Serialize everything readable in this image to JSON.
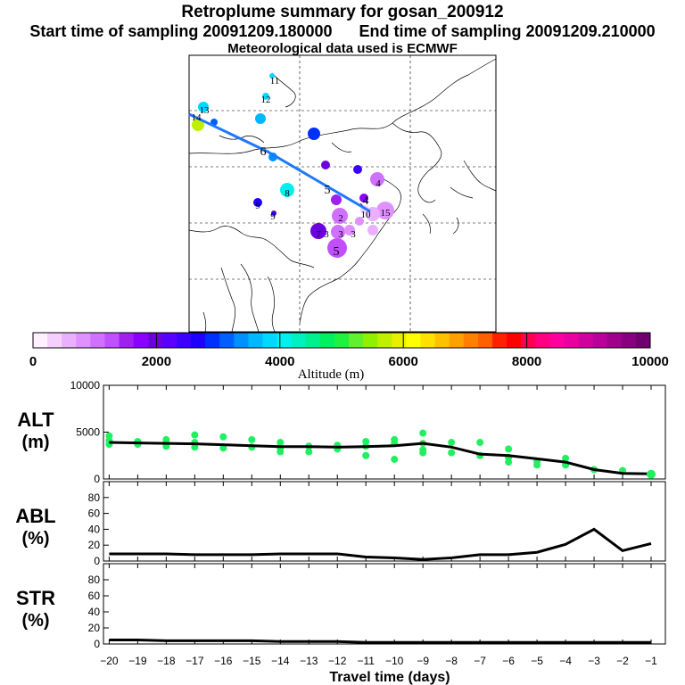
{
  "header": {
    "title": "Retroplume summary for gosan_200912",
    "start_label": "Start time of sampling 20091209.180000",
    "end_label": "End time of sampling 20091209.210000",
    "met_label": "Meteorological data used is ECMWF"
  },
  "chart_data": [
    {
      "type": "map",
      "title": "Retroplume trajectory map",
      "trajectory_day_labels": [
        "1",
        "2",
        "3",
        "4",
        "5",
        "6",
        "7",
        "8",
        "9",
        "10",
        "11",
        "12",
        "13",
        "14",
        "15"
      ],
      "cluster_labels": [
        "2",
        "3",
        "3",
        "3",
        "4",
        "4",
        "5",
        "5",
        "6",
        "7",
        "8",
        "9",
        "9",
        "10",
        "11",
        "12",
        "13",
        "14",
        "15"
      ],
      "colorbar": {
        "label": "Altitude (m)",
        "min": 0,
        "max": 10000,
        "ticks": [
          0,
          2000,
          4000,
          6000,
          8000,
          10000
        ],
        "colors": [
          "#fff0ff",
          "#f5d0ff",
          "#eab0ff",
          "#e090ff",
          "#d070ff",
          "#c050ff",
          "#a020f0",
          "#8c00ff",
          "#6e00e0",
          "#5a00ff",
          "#3c00ff",
          "#1e00ff",
          "#0030ff",
          "#0060ff",
          "#0090ff",
          "#00b8ff",
          "#00d8ff",
          "#00f0f0",
          "#00f0c0",
          "#00f090",
          "#00f060",
          "#20f040",
          "#60f030",
          "#90f000",
          "#c0f000",
          "#e8f000",
          "#ffff00",
          "#ffe000",
          "#ffc000",
          "#ffa000",
          "#ff8000",
          "#ff6000",
          "#ff2000",
          "#ff0000",
          "#ff0050",
          "#ff0080",
          "#ff00a0",
          "#e800a0",
          "#d000a0",
          "#b8009c",
          "#a0008c",
          "#880080",
          "#700070"
        ]
      }
    },
    {
      "type": "line",
      "panel": "ALT",
      "ylabel": "ALT",
      "yunit": "(m)",
      "ylim": [
        0,
        10000
      ],
      "yticks": [
        0,
        5000,
        10000
      ],
      "xlim": [
        -20,
        -0.5
      ],
      "x": [
        -20,
        -19,
        -18,
        -17,
        -16,
        -15,
        -14,
        -13,
        -12,
        -11,
        -10,
        -9,
        -8,
        -7,
        -6,
        -5,
        -4,
        -3,
        -2,
        -1
      ],
      "mean": [
        3900,
        3850,
        3800,
        3750,
        3650,
        3550,
        3450,
        3450,
        3400,
        3450,
        3550,
        3800,
        3400,
        2650,
        2500,
        2150,
        1800,
        1000,
        600,
        550
      ],
      "scatter_x": [
        -20,
        -20,
        -20,
        -19,
        -19,
        -18,
        -18,
        -18,
        -17,
        -17,
        -17,
        -16,
        -16,
        -15,
        -15,
        -14,
        -14,
        -14,
        -13,
        -13,
        -12,
        -12,
        -11,
        -11,
        -11,
        -10,
        -10,
        -10,
        -9,
        -9,
        -9,
        -9,
        -8,
        -8,
        -7,
        -7,
        -6,
        -6,
        -6,
        -5,
        -5,
        -4,
        -4,
        -3,
        -2,
        -1
      ],
      "scatter_y": [
        4100,
        3700,
        4600,
        4000,
        3700,
        4200,
        3500,
        3800,
        3400,
        3900,
        4700,
        3300,
        4500,
        3400,
        4200,
        3300,
        2900,
        3900,
        3500,
        2900,
        3600,
        3200,
        3500,
        4000,
        2500,
        4200,
        3800,
        2100,
        3800,
        3100,
        2800,
        4900,
        3900,
        2800,
        3900,
        2500,
        2300,
        3200,
        1800,
        1900,
        1500,
        2200,
        1500,
        1000,
        900,
        500
      ]
    },
    {
      "type": "line",
      "panel": "ABL",
      "ylabel": "ABL",
      "yunit": "(%)",
      "ylim": [
        0,
        100
      ],
      "yticks": [
        0,
        20,
        40,
        60,
        80
      ],
      "xlim": [
        -20,
        -0.5
      ],
      "x": [
        -20,
        -19,
        -18,
        -17,
        -16,
        -15,
        -14,
        -13,
        -12,
        -11,
        -10,
        -9,
        -8,
        -7,
        -6,
        -5,
        -4,
        -3,
        -2,
        -1
      ],
      "values": [
        9,
        9,
        9,
        8,
        8,
        8,
        9,
        9,
        9,
        5,
        4,
        2,
        4,
        8,
        8,
        11,
        21,
        40,
        13,
        22
      ]
    },
    {
      "type": "line",
      "panel": "STR",
      "ylabel": "STR",
      "yunit": "(%)",
      "ylim": [
        0,
        100
      ],
      "yticks": [
        0,
        20,
        40,
        60,
        80
      ],
      "xlim": [
        -20,
        -0.5
      ],
      "x": [
        -20,
        -19,
        -18,
        -17,
        -16,
        -15,
        -14,
        -13,
        -12,
        -11,
        -10,
        -9,
        -8,
        -7,
        -6,
        -5,
        -4,
        -3,
        -2,
        -1
      ],
      "values": [
        5,
        5,
        4,
        4,
        4,
        4,
        3,
        3,
        3,
        2,
        2,
        2,
        2,
        2,
        2,
        2,
        2,
        2,
        2,
        2
      ],
      "xlabel": "Travel time (days)",
      "xticks": [
        -20,
        -19,
        -18,
        -17,
        -16,
        -15,
        -14,
        -13,
        -12,
        -11,
        -10,
        -9,
        -8,
        -7,
        -6,
        -5,
        -4,
        -3,
        -2,
        -1
      ]
    }
  ]
}
